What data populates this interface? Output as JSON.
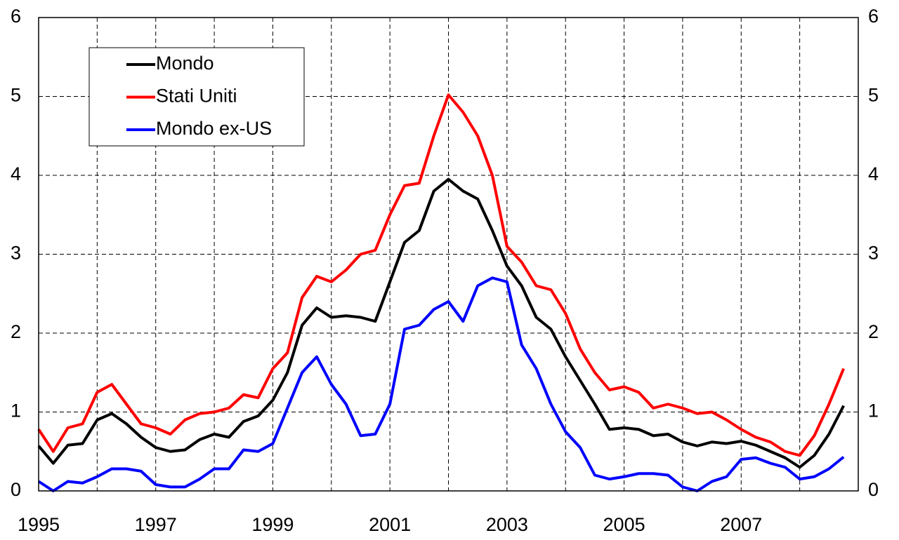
{
  "chart_data": {
    "type": "line",
    "x": [
      1995,
      1995.25,
      1995.5,
      1995.75,
      1996,
      1996.25,
      1996.5,
      1996.75,
      1997,
      1997.25,
      1997.5,
      1997.75,
      1998,
      1998.25,
      1998.5,
      1998.75,
      1999,
      1999.25,
      1999.5,
      1999.75,
      2000,
      2000.25,
      2000.5,
      2000.75,
      2001,
      2001.25,
      2001.5,
      2001.75,
      2002,
      2002.25,
      2002.5,
      2002.75,
      2003,
      2003.25,
      2003.5,
      2003.75,
      2004,
      2004.25,
      2004.5,
      2004.75,
      2005,
      2005.25,
      2005.5,
      2005.75,
      2006,
      2006.25,
      2006.5,
      2006.75,
      2007,
      2007.25,
      2007.5,
      2007.75,
      2008,
      2008.25,
      2008.5,
      2008.75
    ],
    "series": [
      {
        "name": "Mondo",
        "color": "#000000",
        "values": [
          0.57,
          0.35,
          0.58,
          0.6,
          0.9,
          0.98,
          0.85,
          0.68,
          0.55,
          0.5,
          0.52,
          0.65,
          0.72,
          0.68,
          0.88,
          0.95,
          1.15,
          1.5,
          2.1,
          2.32,
          2.2,
          2.22,
          2.2,
          2.15,
          2.65,
          3.15,
          3.3,
          3.8,
          3.95,
          3.8,
          3.7,
          3.3,
          2.85,
          2.6,
          2.2,
          2.05,
          1.7,
          1.4,
          1.1,
          0.78,
          0.8,
          0.78,
          0.7,
          0.72,
          0.62,
          0.57,
          0.62,
          0.6,
          0.63,
          0.58,
          0.5,
          0.42,
          0.3,
          0.45,
          0.72,
          1.08
        ]
      },
      {
        "name": "Stati Uniti",
        "color": "#ff0000",
        "values": [
          0.78,
          0.5,
          0.8,
          0.85,
          1.25,
          1.35,
          1.1,
          0.85,
          0.8,
          0.72,
          0.9,
          0.98,
          1.0,
          1.05,
          1.22,
          1.18,
          1.55,
          1.75,
          2.45,
          2.72,
          2.65,
          2.8,
          3.0,
          3.05,
          3.5,
          3.87,
          3.9,
          4.5,
          5.02,
          4.8,
          4.5,
          4.0,
          3.1,
          2.9,
          2.6,
          2.55,
          2.25,
          1.8,
          1.5,
          1.28,
          1.32,
          1.25,
          1.05,
          1.1,
          1.05,
          0.98,
          1.0,
          0.9,
          0.78,
          0.68,
          0.62,
          0.5,
          0.45,
          0.7,
          1.1,
          1.55
        ]
      },
      {
        "name": "Mondo ex-US",
        "color": "#0000ff",
        "values": [
          0.12,
          0,
          0.12,
          0.1,
          0.18,
          0.28,
          0.28,
          0.25,
          0.08,
          0.05,
          0.05,
          0.15,
          0.28,
          0.28,
          0.52,
          0.5,
          0.6,
          1.05,
          1.5,
          1.7,
          1.35,
          1.1,
          0.7,
          0.72,
          1.1,
          2.05,
          2.1,
          2.3,
          2.4,
          2.15,
          2.6,
          2.7,
          2.65,
          1.85,
          1.55,
          1.1,
          0.75,
          0.55,
          0.2,
          0.15,
          0.18,
          0.22,
          0.22,
          0.2,
          0.05,
          0,
          0.12,
          0.18,
          0.4,
          0.42,
          0.35,
          0.3,
          0.15,
          0.18,
          0.28,
          0.43
        ]
      }
    ],
    "xlim": [
      1995,
      2009
    ],
    "xticks": [
      1995,
      1997,
      1999,
      2001,
      2003,
      2005,
      2007
    ],
    "xgrid": [
      1996,
      1997,
      1998,
      1999,
      2000,
      2001,
      2002,
      2003,
      2004,
      2005,
      2006,
      2007,
      2008
    ],
    "ylim": [
      0,
      6
    ],
    "yticks": [
      0,
      1,
      2,
      3,
      4,
      5,
      6
    ],
    "grid": true,
    "legend": "upper left"
  }
}
